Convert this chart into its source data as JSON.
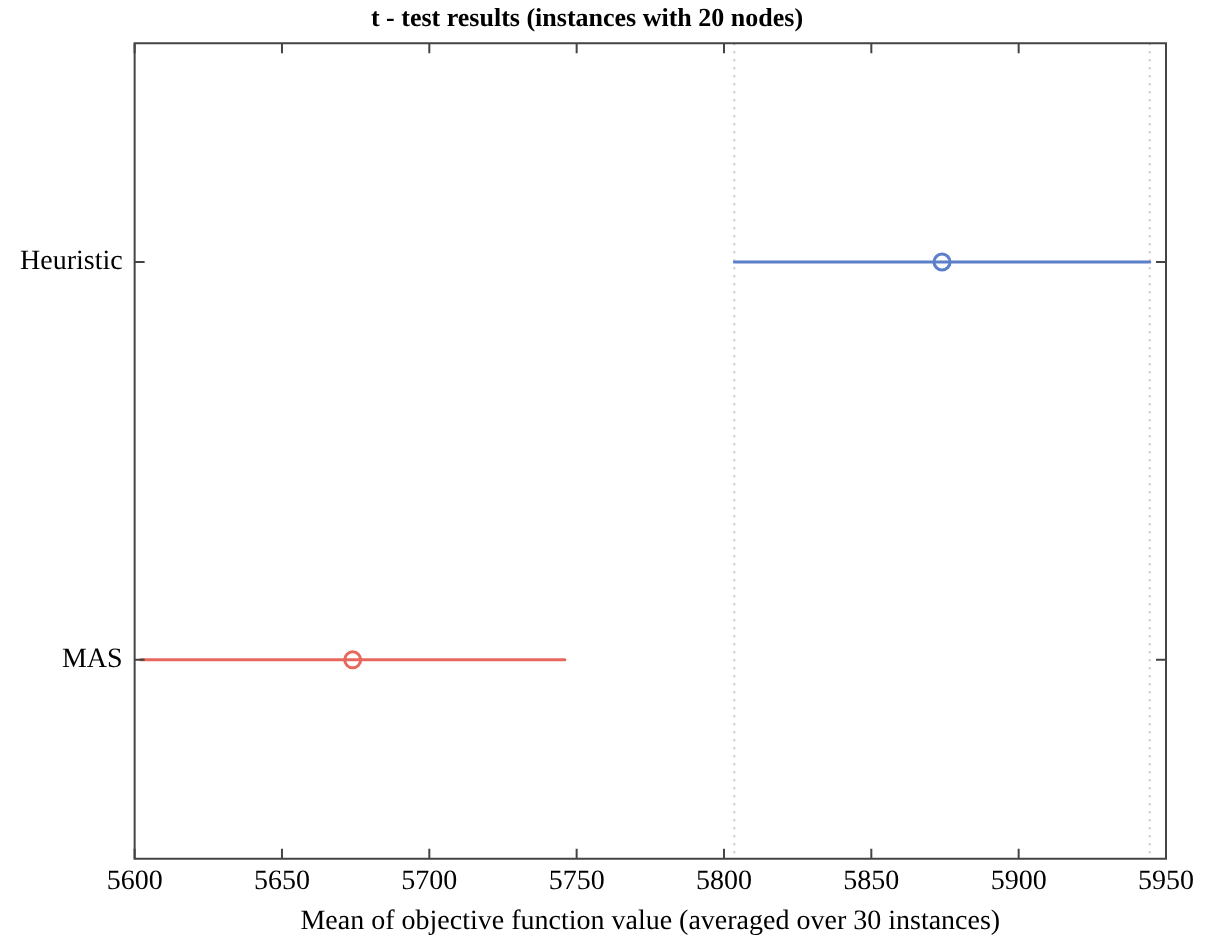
{
  "chart_data": {
    "type": "scatter",
    "orientation": "horizontal",
    "title": "t - test results (instances with 20 nodes)",
    "xlabel": "Mean of objective function value (averaged over 30 instances)",
    "categories": [
      "Heuristic",
      "MAS"
    ],
    "values": [
      5874,
      5674
    ],
    "errors": [
      70.5,
      72
    ],
    "colors": [
      "#5b7fc9",
      "#e8685f"
    ],
    "xlim": [
      5600,
      5950
    ],
    "xticks": [
      5600,
      5650,
      5700,
      5750,
      5800,
      5850,
      5900,
      5950
    ],
    "ref_lines": [
      {
        "axis": "x",
        "value": 5803.5,
        "color": "#c8c8c8",
        "line_style": "dotted"
      },
      {
        "axis": "x",
        "value": 5944.5,
        "color": "#c8c8c8",
        "line_style": "dotted"
      }
    ],
    "marker": "circle",
    "grid": false,
    "legend": false
  }
}
